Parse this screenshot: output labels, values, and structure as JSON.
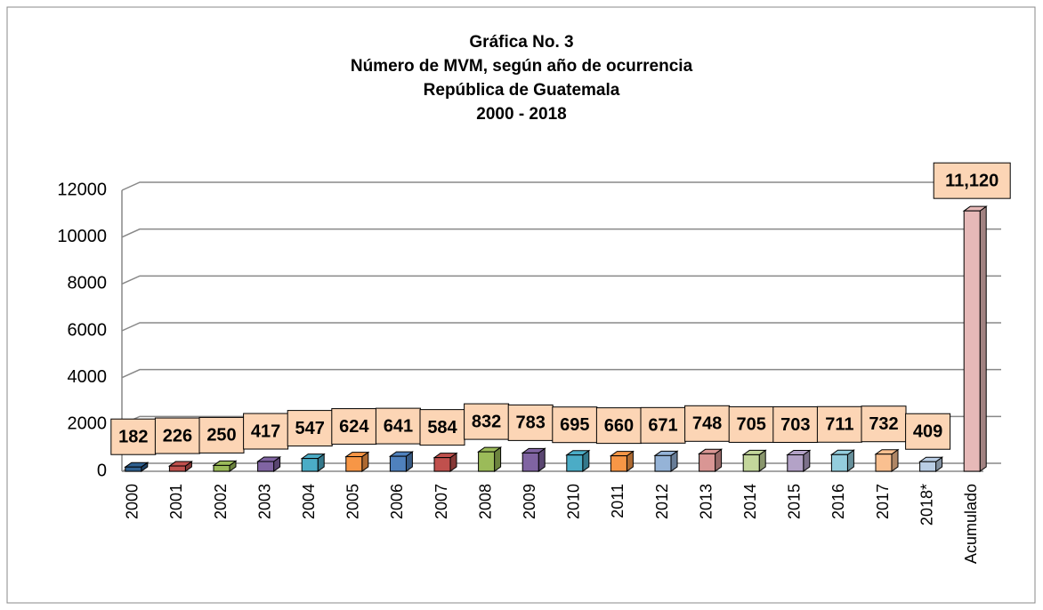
{
  "chart_data": {
    "type": "bar3d",
    "title": [
      "Gráfica No. 3",
      "Número de MVM, según año de ocurrencia",
      "República de Guatemala",
      "2000 - 2018"
    ],
    "categories": [
      "2000",
      "2001",
      "2002",
      "2003",
      "2004",
      "2005",
      "2006",
      "2007",
      "2008",
      "2009",
      "2010",
      "2011",
      "2012",
      "2013",
      "2014",
      "2015",
      "2016",
      "2017",
      "2018*",
      "Acumulado"
    ],
    "values": [
      182,
      226,
      250,
      417,
      547,
      624,
      641,
      584,
      832,
      783,
      695,
      660,
      671,
      748,
      705,
      703,
      711,
      732,
      409,
      11120
    ],
    "value_labels": [
      "182",
      "226",
      "250",
      "417",
      "547",
      "624",
      "641",
      "584",
      "832",
      "783",
      "695",
      "660",
      "671",
      "748",
      "705",
      "703",
      "711",
      "732",
      "409",
      "11,120"
    ],
    "colors": [
      "#2e5f8f",
      "#c0504d",
      "#9bbb59",
      "#8064a2",
      "#4bacc6",
      "#f79646",
      "#4f81bd",
      "#c0504d",
      "#9bbb59",
      "#8064a2",
      "#4bacc6",
      "#f79646",
      "#95b3d7",
      "#d99694",
      "#c3d69b",
      "#b3a2c7",
      "#93cddd",
      "#fac090",
      "#b9cde5",
      "#e6b9b8"
    ],
    "ylim": [
      0,
      12000
    ],
    "yticks": [
      0,
      2000,
      4000,
      6000,
      8000,
      10000,
      12000
    ],
    "grid": true
  }
}
